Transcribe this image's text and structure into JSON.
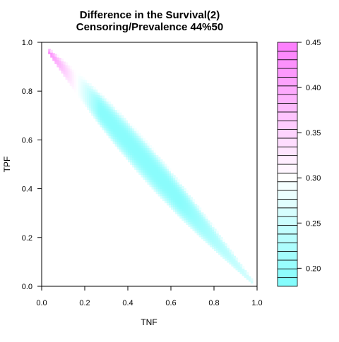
{
  "chart_data": {
    "type": "heatmap",
    "title": "Difference in the Survival(2)",
    "subtitle": "Censoring/Prevalence 44%50",
    "xlabel": "TNF",
    "ylabel": "TPF",
    "xlim": [
      0,
      1
    ],
    "ylim": [
      0,
      1
    ],
    "x_ticks": [
      "0.0",
      "0.2",
      "0.4",
      "0.6",
      "0.8",
      "1.0"
    ],
    "y_ticks": [
      "0.0",
      "0.2",
      "0.4",
      "0.6",
      "0.8",
      "1.0"
    ],
    "colorbar": {
      "range": [
        0.18,
        0.45
      ],
      "tick_labels": [
        "0.20",
        "0.25",
        "0.30",
        "0.35",
        "0.40",
        "0.45"
      ],
      "low_color": "#7ffcfc",
      "mid_color": "#ffffff",
      "high_color": "#fc7cfc",
      "bins": 28
    },
    "region": {
      "description_shape": "band along TPF = 1 - TNF",
      "x_range": [
        0.03,
        0.97
      ],
      "value_near_top_left": 0.43,
      "value_center": 0.19,
      "value_near_bottom_right": 0.26
    },
    "grid": false,
    "legend": "colorbar-right"
  }
}
